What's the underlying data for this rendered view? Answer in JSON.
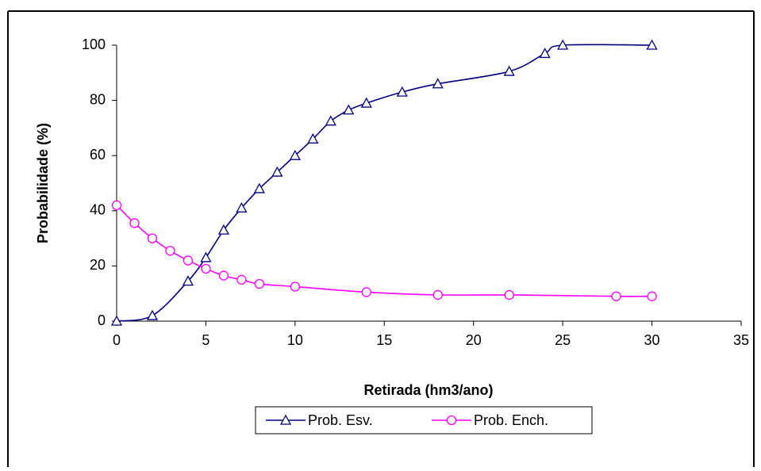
{
  "chart_data": {
    "type": "line",
    "x_label": "Retirada (hm3/ano)",
    "y_label": "Probabilidade (%)",
    "xlim": [
      0,
      35
    ],
    "xticks": [
      0,
      5,
      10,
      15,
      20,
      25,
      30,
      35
    ],
    "ylim": [
      0,
      100
    ],
    "yticks": [
      0,
      20,
      40,
      60,
      80,
      100
    ],
    "grid": false,
    "legend": "bottom",
    "smooth": true,
    "series": [
      {
        "name": "Prob. Esv.",
        "color": "#000080",
        "marker": "triangle",
        "x": [
          0,
          2,
          4,
          5,
          6,
          7,
          8,
          9,
          10,
          11,
          12,
          13,
          14,
          16,
          18,
          22,
          24,
          25,
          30
        ],
        "values": [
          0,
          2,
          14.5,
          23,
          33,
          41,
          48,
          54,
          60,
          66,
          72.5,
          76.5,
          79,
          83,
          86,
          90.5,
          97,
          100,
          100
        ]
      },
      {
        "name": "Prob. Ench.",
        "color": "#ff00ff",
        "marker": "circle",
        "x": [
          0,
          1,
          2,
          3,
          4,
          5,
          6,
          7,
          8,
          10,
          14,
          18,
          22,
          28,
          30
        ],
        "values": [
          42,
          35.5,
          30,
          25.5,
          22,
          19,
          16.5,
          15,
          13.5,
          12.5,
          10.5,
          9.5,
          9.5,
          9,
          9
        ]
      }
    ]
  }
}
